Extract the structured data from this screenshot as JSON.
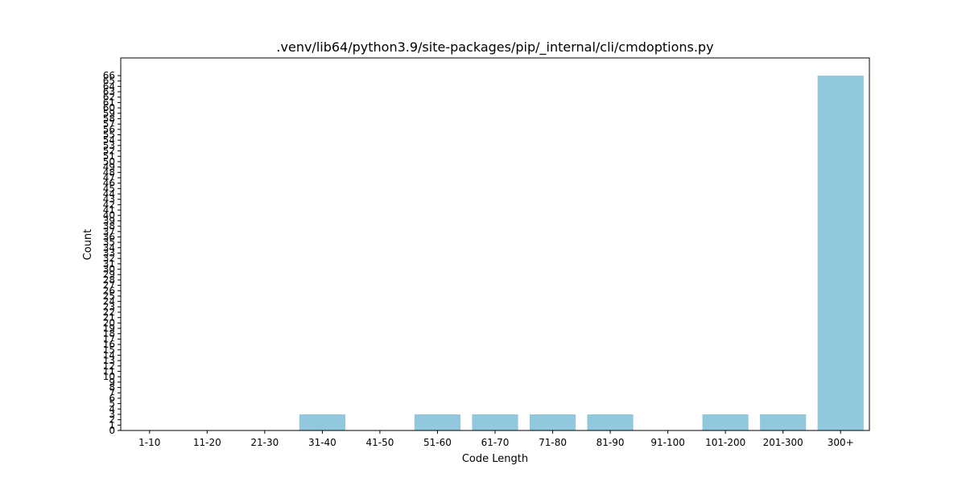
{
  "chart_data": {
    "type": "bar",
    "title": ".venv/lib64/python3.9/site-packages/pip/_internal/cli/cmdoptions.py",
    "xlabel": "Code Length",
    "ylabel": "Count",
    "categories": [
      "1-10",
      "11-20",
      "21-30",
      "31-40",
      "41-50",
      "51-60",
      "61-70",
      "71-80",
      "81-90",
      "91-100",
      "101-200",
      "201-300",
      "300+"
    ],
    "values": [
      0,
      0,
      0,
      3,
      0,
      3,
      3,
      3,
      3,
      0,
      3,
      3,
      66
    ],
    "ylim": [
      0,
      66
    ],
    "yticks": [
      0,
      1,
      2,
      3,
      4,
      5,
      6,
      7,
      8,
      9,
      10,
      11,
      12,
      13,
      14,
      15,
      16,
      17,
      18,
      19,
      20,
      21,
      22,
      23,
      24,
      25,
      26,
      27,
      28,
      29,
      30,
      31,
      32,
      33,
      34,
      35,
      36,
      37,
      38,
      39,
      40,
      41,
      42,
      43,
      44,
      45,
      46,
      47,
      48,
      49,
      50,
      51,
      52,
      53,
      54,
      55,
      56,
      57,
      58,
      59,
      60,
      61,
      62,
      63,
      64,
      65,
      66
    ],
    "grid": false,
    "legend": "none",
    "bar_color": "#92c8dd"
  }
}
